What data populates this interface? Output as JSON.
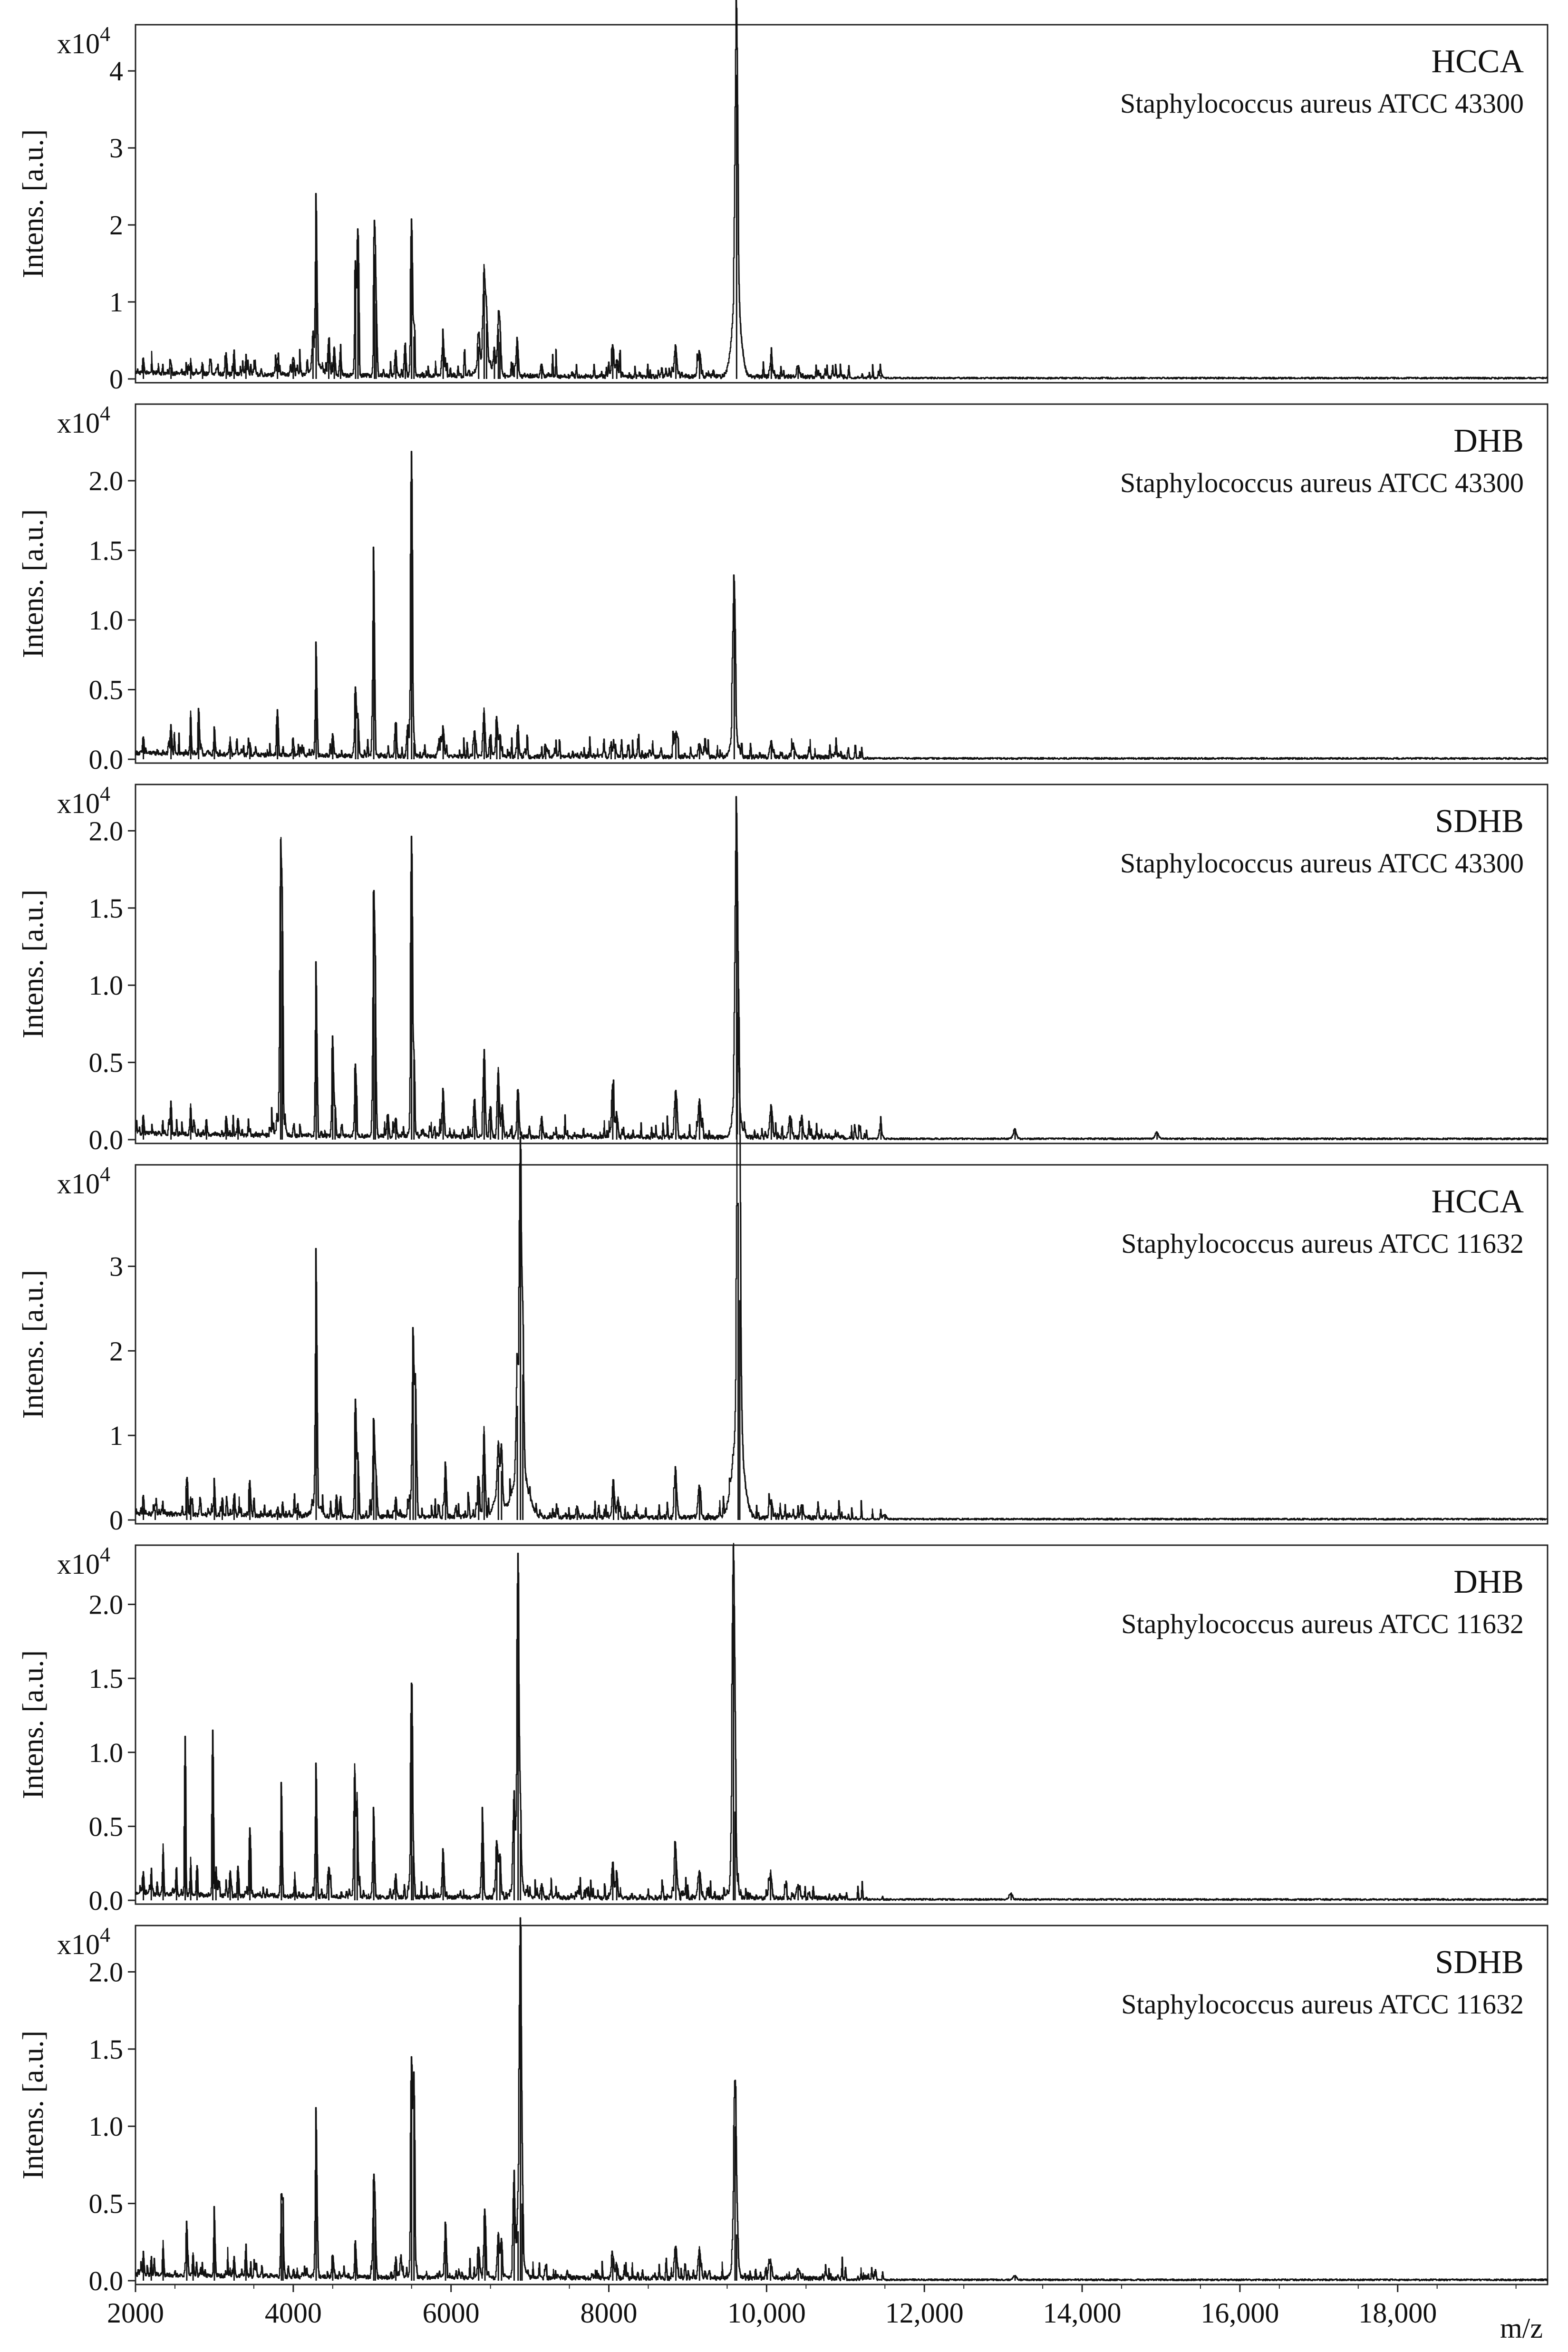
{
  "figure": {
    "xlabel": "m/z",
    "x_range": [
      2000,
      19900
    ],
    "x_ticks": [
      {
        "value": 2000,
        "label": "2000"
      },
      {
        "value": 4000,
        "label": "4000"
      },
      {
        "value": 6000,
        "label": "6000"
      },
      {
        "value": 8000,
        "label": "8000"
      },
      {
        "value": 10000,
        "label": "10,000"
      },
      {
        "value": 12000,
        "label": "12,000"
      },
      {
        "value": 14000,
        "label": "14,000"
      },
      {
        "value": 16000,
        "label": "16,000"
      },
      {
        "value": 18000,
        "label": "18,000"
      }
    ],
    "colors": {
      "trace": "#111111",
      "frame": "#222222",
      "background": "#ffffff"
    }
  },
  "chart_data": [
    {
      "type": "line",
      "matrix": "HCCA",
      "strain": "Staphylococcus aureus ATCC 43300",
      "ylabel": "Intens. [a.u.]",
      "multiplier": {
        "base": "x10",
        "exponent": "4"
      },
      "ylim": [
        0,
        4.6
      ],
      "y_ticks": [
        {
          "value": 0,
          "label": "0"
        },
        {
          "value": 1,
          "label": "1"
        },
        {
          "value": 2,
          "label": "2"
        },
        {
          "value": 3,
          "label": "3"
        },
        {
          "value": 4,
          "label": "4"
        }
      ],
      "peaks": [
        [
          2100,
          0.2
        ],
        [
          2450,
          0.15
        ],
        [
          2700,
          0.18
        ],
        [
          2850,
          0.15
        ],
        [
          3150,
          0.28
        ],
        [
          3250,
          0.2
        ],
        [
          3400,
          0.15
        ],
        [
          3800,
          0.2
        ],
        [
          4000,
          0.22
        ],
        [
          4250,
          0.4
        ],
        [
          4290,
          2.2
        ],
        [
          4450,
          0.45
        ],
        [
          4520,
          0.38
        ],
        [
          4600,
          0.3
        ],
        [
          4790,
          1.4
        ],
        [
          4820,
          1.88
        ],
        [
          5030,
          1.62
        ],
        [
          5050,
          0.98
        ],
        [
          5300,
          0.3
        ],
        [
          5420,
          0.38
        ],
        [
          5500,
          2.02
        ],
        [
          5530,
          0.55
        ],
        [
          5900,
          0.48
        ],
        [
          6350,
          0.42
        ],
        [
          6420,
          1.15
        ],
        [
          6450,
          0.72
        ],
        [
          6550,
          0.32
        ],
        [
          6600,
          0.65
        ],
        [
          6620,
          0.48
        ],
        [
          6840,
          0.5
        ],
        [
          7150,
          0.18
        ],
        [
          8050,
          0.42
        ],
        [
          8100,
          0.2
        ],
        [
          8850,
          0.38
        ],
        [
          9150,
          0.35
        ],
        [
          9620,
          3.95
        ],
        [
          10060,
          0.2
        ],
        [
          10400,
          0.15
        ],
        [
          11450,
          0.05
        ]
      ],
      "broad": [
        [
          9620,
          1.0,
          55
        ],
        [
          6420,
          0.25,
          70
        ],
        [
          4290,
          0.18,
          60
        ]
      ]
    },
    {
      "type": "line",
      "matrix": "DHB",
      "strain": "Staphylococcus aureus ATCC 43300",
      "ylabel": "Intens. [a.u.]",
      "multiplier": {
        "base": "x10",
        "exponent": "4"
      },
      "ylim": [
        0,
        2.55
      ],
      "y_ticks": [
        {
          "value": 0,
          "label": "0.0"
        },
        {
          "value": 0.5,
          "label": "0.5"
        },
        {
          "value": 1.0,
          "label": "1.0"
        },
        {
          "value": 1.5,
          "label": "1.5"
        },
        {
          "value": 2.0,
          "label": "2.0"
        }
      ],
      "peaks": [
        [
          2100,
          0.12
        ],
        [
          2450,
          0.2
        ],
        [
          2700,
          0.32
        ],
        [
          2800,
          0.28
        ],
        [
          3000,
          0.2
        ],
        [
          3200,
          0.12
        ],
        [
          3450,
          0.08
        ],
        [
          3800,
          0.32
        ],
        [
          4000,
          0.08
        ],
        [
          4290,
          0.82
        ],
        [
          4500,
          0.15
        ],
        [
          4790,
          0.5
        ],
        [
          4820,
          0.3
        ],
        [
          5020,
          1.5
        ],
        [
          5300,
          0.25
        ],
        [
          5450,
          0.2
        ],
        [
          5500,
          2.18
        ],
        [
          5530,
          0.12
        ],
        [
          5900,
          0.22
        ],
        [
          6300,
          0.18
        ],
        [
          6420,
          0.35
        ],
        [
          6500,
          0.15
        ],
        [
          6580,
          0.28
        ],
        [
          6620,
          0.15
        ],
        [
          6850,
          0.2
        ],
        [
          7200,
          0.08
        ],
        [
          8030,
          0.1
        ],
        [
          8080,
          0.08
        ],
        [
          8850,
          0.18
        ],
        [
          9150,
          0.1
        ],
        [
          9590,
          1.2
        ],
        [
          10060,
          0.1
        ],
        [
          10350,
          0.06
        ]
      ],
      "broad": [
        [
          9590,
          0.12,
          45
        ]
      ]
    },
    {
      "type": "line",
      "matrix": "SDHB",
      "strain": "Staphylococcus aureus ATCC 43300",
      "ylabel": "Intens. [a.u.]",
      "multiplier": {
        "base": "x10",
        "exponent": "4"
      },
      "ylim": [
        0,
        2.3
      ],
      "y_ticks": [
        {
          "value": 0,
          "label": "0.0"
        },
        {
          "value": 0.5,
          "label": "0.5"
        },
        {
          "value": 1.0,
          "label": "1.0"
        },
        {
          "value": 1.5,
          "label": "1.5"
        },
        {
          "value": 2.0,
          "label": "2.0"
        }
      ],
      "peaks": [
        [
          2100,
          0.12
        ],
        [
          2450,
          0.15
        ],
        [
          2700,
          0.2
        ],
        [
          2900,
          0.1
        ],
        [
          3150,
          0.12
        ],
        [
          3300,
          0.1
        ],
        [
          3840,
          1.68
        ],
        [
          3860,
          1.35
        ],
        [
          4290,
          1.1
        ],
        [
          4500,
          0.65
        ],
        [
          4530,
          0.2
        ],
        [
          4790,
          0.45
        ],
        [
          5020,
          1.38
        ],
        [
          5040,
          0.88
        ],
        [
          5200,
          0.15
        ],
        [
          5300,
          0.12
        ],
        [
          5500,
          1.88
        ],
        [
          5530,
          0.52
        ],
        [
          5900,
          0.32
        ],
        [
          6300,
          0.25
        ],
        [
          6420,
          0.55
        ],
        [
          6500,
          0.2
        ],
        [
          6600,
          0.45
        ],
        [
          6650,
          0.2
        ],
        [
          6850,
          0.32
        ],
        [
          7150,
          0.12
        ],
        [
          8050,
          0.32
        ],
        [
          8100,
          0.15
        ],
        [
          8850,
          0.3
        ],
        [
          9150,
          0.25
        ],
        [
          9620,
          1.95
        ],
        [
          10060,
          0.2
        ],
        [
          10300,
          0.12
        ],
        [
          10450,
          0.08
        ],
        [
          11450,
          0.05
        ],
        [
          13150,
          0.06
        ],
        [
          14950,
          0.04
        ]
      ],
      "broad": [
        [
          9620,
          0.25,
          45
        ],
        [
          3840,
          0.12,
          40
        ]
      ]
    },
    {
      "type": "line",
      "matrix": "HCCA",
      "strain": "Staphylococcus aureus ATCC 11632",
      "ylabel": "Intens. [a.u.]",
      "multiplier": {
        "base": "x10",
        "exponent": "4"
      },
      "ylim": [
        0,
        4.2
      ],
      "y_ticks": [
        {
          "value": 0,
          "label": "0"
        },
        {
          "value": 1,
          "label": "1"
        },
        {
          "value": 2,
          "label": "2"
        },
        {
          "value": 3,
          "label": "3"
        }
      ],
      "peaks": [
        [
          2100,
          0.15
        ],
        [
          2250,
          0.12
        ],
        [
          2650,
          0.38
        ],
        [
          2700,
          0.2
        ],
        [
          3000,
          0.42
        ],
        [
          3100,
          0.2
        ],
        [
          3250,
          0.2
        ],
        [
          3450,
          0.38
        ],
        [
          3800,
          0.1
        ],
        [
          4050,
          0.12
        ],
        [
          4290,
          3.0
        ],
        [
          4550,
          0.25
        ],
        [
          4600,
          0.25
        ],
        [
          4790,
          1.35
        ],
        [
          4820,
          0.72
        ],
        [
          5020,
          1.1
        ],
        [
          5050,
          0.55
        ],
        [
          5300,
          0.22
        ],
        [
          5480,
          0.25
        ],
        [
          5520,
          2.2
        ],
        [
          5550,
          1.6
        ],
        [
          5930,
          0.65
        ],
        [
          6350,
          0.5
        ],
        [
          6420,
          1.05
        ],
        [
          6600,
          0.65
        ],
        [
          6640,
          0.58
        ],
        [
          6840,
          1.35
        ],
        [
          6880,
          3.78
        ],
        [
          6910,
          1.72
        ],
        [
          7600,
          0.12
        ],
        [
          8060,
          0.4
        ],
        [
          8120,
          0.22
        ],
        [
          8850,
          0.52
        ],
        [
          9150,
          0.38
        ],
        [
          9640,
          3.75
        ],
        [
          9660,
          2.6
        ],
        [
          10060,
          0.2
        ],
        [
          10450,
          0.15
        ],
        [
          11500,
          0.05
        ]
      ],
      "broad": [
        [
          9640,
          1.0,
          70
        ],
        [
          6880,
          0.6,
          90
        ],
        [
          6600,
          0.25,
          60
        ],
        [
          4290,
          0.15,
          50
        ]
      ]
    },
    {
      "type": "line",
      "matrix": "DHB",
      "strain": "Staphylococcus aureus ATCC 11632",
      "ylabel": "Intens. [a.u.]",
      "multiplier": {
        "base": "x10",
        "exponent": "4"
      },
      "ylim": [
        0,
        2.4
      ],
      "y_ticks": [
        {
          "value": 0,
          "label": "0.0"
        },
        {
          "value": 0.5,
          "label": "0.5"
        },
        {
          "value": 1.0,
          "label": "1.0"
        },
        {
          "value": 1.5,
          "label": "1.5"
        },
        {
          "value": 2.0,
          "label": "2.0"
        }
      ],
      "peaks": [
        [
          2100,
          0.15
        ],
        [
          2200,
          0.18
        ],
        [
          2350,
          0.35
        ],
        [
          2520,
          0.15
        ],
        [
          2630,
          1.08
        ],
        [
          2700,
          0.22
        ],
        [
          2780,
          0.2
        ],
        [
          2980,
          1.13
        ],
        [
          3020,
          0.2
        ],
        [
          3200,
          0.18
        ],
        [
          3300,
          0.2
        ],
        [
          3450,
          0.45
        ],
        [
          3850,
          0.77
        ],
        [
          4020,
          0.12
        ],
        [
          4290,
          0.9
        ],
        [
          4450,
          0.2
        ],
        [
          4780,
          0.88
        ],
        [
          4810,
          0.68
        ],
        [
          5020,
          0.6
        ],
        [
          5300,
          0.15
        ],
        [
          5500,
          1.35
        ],
        [
          5520,
          0.3
        ],
        [
          5900,
          0.32
        ],
        [
          6400,
          0.48
        ],
        [
          6580,
          0.38
        ],
        [
          6620,
          0.3
        ],
        [
          6800,
          0.62
        ],
        [
          6850,
          2.12
        ],
        [
          6880,
          0.45
        ],
        [
          7150,
          0.08
        ],
        [
          8050,
          0.22
        ],
        [
          8100,
          0.15
        ],
        [
          8850,
          0.32
        ],
        [
          9150,
          0.18
        ],
        [
          9580,
          2.0
        ],
        [
          9600,
          0.6
        ],
        [
          10050,
          0.15
        ],
        [
          10400,
          0.08
        ],
        [
          13100,
          0.04
        ]
      ],
      "broad": [
        [
          9580,
          0.1,
          40
        ],
        [
          6850,
          0.15,
          50
        ]
      ]
    },
    {
      "type": "line",
      "matrix": "SDHB",
      "strain": "Staphylococcus aureus ATCC 11632",
      "ylabel": "Intens. [a.u.]",
      "multiplier": {
        "base": "x10",
        "exponent": "4"
      },
      "ylim": [
        0,
        2.3
      ],
      "y_ticks": [
        {
          "value": 0,
          "label": "0.0"
        },
        {
          "value": 0.5,
          "label": "0.5"
        },
        {
          "value": 1.0,
          "label": "1.0"
        },
        {
          "value": 1.5,
          "label": "1.5"
        },
        {
          "value": 2.0,
          "label": "2.0"
        }
      ],
      "peaks": [
        [
          2100,
          0.15
        ],
        [
          2200,
          0.12
        ],
        [
          2350,
          0.22
        ],
        [
          2650,
          0.35
        ],
        [
          2730,
          0.15
        ],
        [
          3000,
          0.42
        ],
        [
          3250,
          0.12
        ],
        [
          3400,
          0.2
        ],
        [
          3850,
          0.5
        ],
        [
          3870,
          0.35
        ],
        [
          4290,
          1.1
        ],
        [
          4500,
          0.15
        ],
        [
          4790,
          0.2
        ],
        [
          5020,
          0.58
        ],
        [
          5040,
          0.35
        ],
        [
          5300,
          0.12
        ],
        [
          5500,
          1.4
        ],
        [
          5530,
          1.3
        ],
        [
          5930,
          0.35
        ],
        [
          6350,
          0.2
        ],
        [
          6430,
          0.45
        ],
        [
          6600,
          0.3
        ],
        [
          6640,
          0.25
        ],
        [
          6800,
          0.65
        ],
        [
          6850,
          0.32
        ],
        [
          6880,
          2.05
        ],
        [
          6900,
          0.5
        ],
        [
          8050,
          0.15
        ],
        [
          8100,
          0.1
        ],
        [
          8850,
          0.22
        ],
        [
          9150,
          0.18
        ],
        [
          9600,
          1.0
        ],
        [
          9620,
          0.3
        ],
        [
          10050,
          0.1
        ],
        [
          10400,
          0.05
        ],
        [
          13150,
          0.03
        ]
      ],
      "broad": [
        [
          9600,
          0.1,
          40
        ],
        [
          6880,
          0.12,
          50
        ]
      ]
    }
  ]
}
